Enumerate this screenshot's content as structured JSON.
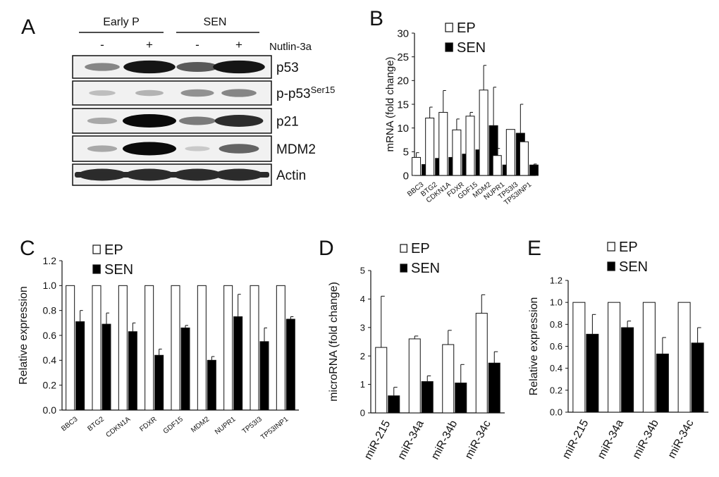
{
  "panels": {
    "A": {
      "letter": "A",
      "groups": [
        "Early P",
        "SEN"
      ],
      "treatment_label": "Nutlin-3a",
      "lane_signs": [
        "-",
        "+",
        "-",
        "+"
      ],
      "bands": [
        {
          "label": "p53",
          "intensity": [
            0.45,
            0.95,
            0.65,
            0.95
          ]
        },
        {
          "label": "p-p53",
          "superscript": "Ser15",
          "intensity": [
            0.2,
            0.25,
            0.4,
            0.45
          ]
        },
        {
          "label": "p21",
          "intensity": [
            0.3,
            1.0,
            0.5,
            0.85
          ]
        },
        {
          "label": "MDM2",
          "intensity": [
            0.3,
            1.0,
            0.15,
            0.6
          ]
        },
        {
          "label": "Actin",
          "intensity": [
            0.85,
            0.85,
            0.85,
            0.85
          ]
        }
      ]
    },
    "B": {
      "letter": "B"
    },
    "C": {
      "letter": "C"
    },
    "D": {
      "letter": "D"
    },
    "E": {
      "letter": "E"
    }
  },
  "chart_data": [
    {
      "panel": "B",
      "type": "bar",
      "categories": [
        "BBC3",
        "BTG2",
        "CDKN1A",
        "FDXR",
        "GDF15",
        "MDM2",
        "NUPR1",
        "TP53I3",
        "TP53INP1"
      ],
      "series": [
        {
          "name": "EP",
          "values": [
            3.8,
            12.1,
            13.3,
            9.6,
            12.5,
            18.0,
            4.2,
            9.7,
            7.1
          ],
          "errors": [
            1.0,
            2.3,
            4.6,
            2.3,
            0.8,
            5.2,
            1.5,
            0,
            0
          ],
          "color": "#ffffff"
        },
        {
          "name": "SEN",
          "values": [
            2.3,
            3.6,
            3.8,
            4.5,
            5.4,
            10.5,
            2.2,
            8.9,
            2.2
          ],
          "errors": [
            0.8,
            0.6,
            1.1,
            0.9,
            2.1,
            8.1,
            0.5,
            6.1,
            0.2
          ],
          "color": "#000000"
        }
      ],
      "ylabel": "mRNA (fold change)",
      "ylim": [
        0,
        30
      ],
      "yticks": [
        "0",
        "5",
        "10",
        "15",
        "20",
        "25",
        "30"
      ],
      "legend": "top-left"
    },
    {
      "panel": "C",
      "type": "bar",
      "categories": [
        "BBC3",
        "BTG2",
        "CDKN1A",
        "FDXR",
        "GDF15",
        "MDM2",
        "NUPR1",
        "TP53I3",
        "TP53INP1"
      ],
      "series": [
        {
          "name": "EP",
          "values": [
            1.0,
            1.0,
            1.0,
            1.0,
            1.0,
            1.0,
            1.0,
            1.0,
            1.0
          ],
          "errors": [
            0,
            0,
            0,
            0,
            0,
            0,
            0,
            0,
            0
          ],
          "color": "#ffffff"
        },
        {
          "name": "SEN",
          "values": [
            0.71,
            0.69,
            0.63,
            0.44,
            0.66,
            0.4,
            0.75,
            0.55,
            0.73
          ],
          "errors": [
            0.09,
            0.09,
            0.07,
            0.05,
            0.02,
            0.03,
            0.18,
            0.11,
            0.02
          ],
          "color": "#000000"
        }
      ],
      "ylabel": "Relative expression",
      "ylim": [
        0,
        1.2
      ],
      "yticks": [
        "0.0",
        "0.2",
        "0.4",
        "0.6",
        "0.8",
        "1.0",
        "1.2"
      ],
      "legend": "top"
    },
    {
      "panel": "D",
      "type": "bar",
      "categories": [
        "miR-215",
        "miR-34a",
        "miR-34b",
        "miR-34c"
      ],
      "series": [
        {
          "name": "EP",
          "values": [
            2.3,
            2.6,
            2.4,
            3.5
          ],
          "errors": [
            1.8,
            0.1,
            0.5,
            0.65
          ],
          "color": "#ffffff"
        },
        {
          "name": "SEN",
          "values": [
            0.6,
            1.1,
            1.05,
            1.75
          ],
          "errors": [
            0.3,
            0.2,
            0.65,
            0.4
          ],
          "color": "#000000"
        }
      ],
      "ylabel": "microRNA (fold change)",
      "ylim": [
        0,
        5
      ],
      "yticks": [
        "0",
        "1",
        "2",
        "3",
        "4",
        "5"
      ],
      "legend": "top-left"
    },
    {
      "panel": "E",
      "type": "bar",
      "categories": [
        "miR-215",
        "miR-34a",
        "miR-34b",
        "miR-34c"
      ],
      "series": [
        {
          "name": "EP",
          "values": [
            1.0,
            1.0,
            1.0,
            1.0
          ],
          "errors": [
            0,
            0,
            0,
            0
          ],
          "color": "#ffffff"
        },
        {
          "name": "SEN",
          "values": [
            0.71,
            0.77,
            0.53,
            0.63
          ],
          "errors": [
            0.18,
            0.06,
            0.15,
            0.14
          ],
          "color": "#000000"
        }
      ],
      "ylabel": "Relative expression",
      "ylim": [
        0,
        1.2
      ],
      "yticks": [
        "0.0",
        "0.2",
        "0.4",
        "0.6",
        "0.8",
        "1.0",
        "1.2"
      ],
      "legend": "top-left"
    }
  ]
}
